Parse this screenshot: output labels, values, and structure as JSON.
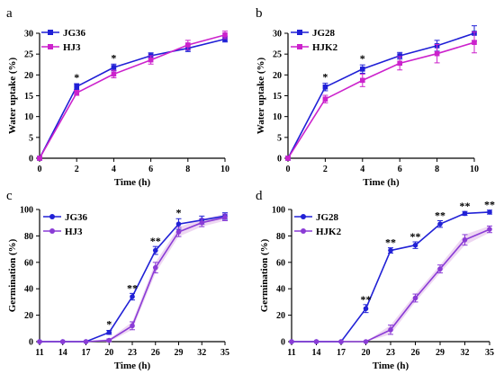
{
  "chart_data": [
    {
      "panel": "a",
      "type": "line",
      "xlabel": "Time (h)",
      "ylabel": "Water uptake (%)",
      "x": [
        0,
        2,
        4,
        6,
        8,
        10
      ],
      "xticks": [
        "0",
        "2",
        "4",
        "6",
        "8",
        "10"
      ],
      "yticks": [
        "0",
        "5",
        "10",
        "15",
        "20",
        "25",
        "30"
      ],
      "xlim": [
        0,
        10
      ],
      "ylim": [
        0,
        30
      ],
      "legend": "top-left",
      "series": [
        {
          "name": "JG36",
          "color": "#1f1fd6",
          "marker": "square",
          "shade": false,
          "values": [
            0,
            17.2,
            21.8,
            24.6,
            26.4,
            28.6
          ],
          "errors": [
            0,
            0.7,
            0.8,
            0.7,
            0.8,
            0.7
          ]
        },
        {
          "name": "HJ3",
          "color": "#cc22cc",
          "marker": "square",
          "shade": false,
          "values": [
            0,
            15.7,
            20.2,
            23.6,
            27.2,
            29.6
          ],
          "errors": [
            0,
            0.6,
            0.9,
            1.0,
            1.1,
            0.9
          ]
        }
      ],
      "significance": [
        {
          "x": 2,
          "label": "*"
        },
        {
          "x": 4,
          "label": "*"
        }
      ]
    },
    {
      "panel": "b",
      "type": "line",
      "xlabel": "Time (h)",
      "ylabel": "Water uptake (%)",
      "x": [
        0,
        2,
        4,
        6,
        8,
        10
      ],
      "xticks": [
        "0",
        "2",
        "4",
        "6",
        "8",
        "10"
      ],
      "yticks": [
        "0",
        "5",
        "10",
        "15",
        "20",
        "25",
        "30"
      ],
      "xlim": [
        0,
        10
      ],
      "ylim": [
        0,
        30
      ],
      "legend": "top-left",
      "series": [
        {
          "name": "JG28",
          "color": "#1f1fd6",
          "marker": "square",
          "shade": false,
          "values": [
            0,
            17.1,
            21.4,
            24.6,
            27.0,
            30.0
          ],
          "errors": [
            0,
            0.9,
            1.0,
            0.8,
            1.3,
            1.8
          ]
        },
        {
          "name": "HJK2",
          "color": "#cc22cc",
          "marker": "square",
          "shade": false,
          "values": [
            0,
            14.2,
            18.7,
            22.8,
            25.1,
            27.8
          ],
          "errors": [
            0,
            0.9,
            1.5,
            1.6,
            2.2,
            2.5
          ]
        }
      ],
      "significance": [
        {
          "x": 2,
          "label": "*"
        },
        {
          "x": 4,
          "label": "*"
        }
      ]
    },
    {
      "panel": "c",
      "type": "line",
      "xlabel": "Time (h)",
      "ylabel": "Germination  (%)",
      "x": [
        11,
        14,
        17,
        20,
        23,
        26,
        29,
        32,
        35
      ],
      "xticks": [
        "11",
        "14",
        "17",
        "20",
        "23",
        "26",
        "29",
        "32",
        "35"
      ],
      "yticks": [
        "0",
        "20",
        "40",
        "60",
        "80",
        "100"
      ],
      "xlim": [
        11,
        35
      ],
      "ylim": [
        0,
        100
      ],
      "legend": "top-left",
      "series": [
        {
          "name": "JG36",
          "color": "#2121d6",
          "marker": "circle",
          "shade": false,
          "values": [
            0,
            0,
            0,
            7,
            34,
            69,
            89,
            92,
            95
          ],
          "errors": [
            0,
            0,
            0,
            1.5,
            2.5,
            3,
            4,
            3,
            2.5
          ]
        },
        {
          "name": "HJ3",
          "color": "#8a3bd6",
          "marker": "circle",
          "shade": true,
          "values": [
            0,
            0,
            0,
            1,
            12,
            56,
            83,
            90,
            94
          ],
          "errors": [
            0,
            0,
            0,
            1,
            3,
            4,
            3.5,
            3,
            2.5
          ]
        }
      ],
      "significance": [
        {
          "x": 20,
          "label": "*"
        },
        {
          "x": 23,
          "label": "**"
        },
        {
          "x": 26,
          "label": "**"
        },
        {
          "x": 29,
          "label": "*"
        }
      ]
    },
    {
      "panel": "d",
      "type": "line",
      "xlabel": "Time (h)",
      "ylabel": "Germination  (%)",
      "x": [
        11,
        14,
        17,
        20,
        23,
        26,
        29,
        32,
        35
      ],
      "xticks": [
        "11",
        "14",
        "17",
        "20",
        "23",
        "26",
        "29",
        "32",
        "35"
      ],
      "yticks": [
        "0",
        "20",
        "40",
        "60",
        "80",
        "100"
      ],
      "xlim": [
        11,
        35
      ],
      "ylim": [
        0,
        100
      ],
      "legend": "top-left",
      "series": [
        {
          "name": "JG28",
          "color": "#2121d6",
          "marker": "circle",
          "shade": false,
          "values": [
            0,
            0,
            0,
            25,
            69,
            73,
            89,
            97,
            98
          ],
          "errors": [
            0,
            0,
            0,
            3,
            2,
            2.5,
            2.5,
            1.5,
            1.5
          ]
        },
        {
          "name": "HJK2",
          "color": "#8a3bd6",
          "marker": "circle",
          "shade": true,
          "values": [
            0,
            0,
            0,
            0,
            9,
            33,
            55,
            77,
            85
          ],
          "errors": [
            0,
            0,
            0,
            0,
            3.5,
            3,
            3,
            4,
            2.5
          ]
        }
      ],
      "significance": [
        {
          "x": 20,
          "label": "**"
        },
        {
          "x": 23,
          "label": "**"
        },
        {
          "x": 26,
          "label": "**"
        },
        {
          "x": 29,
          "label": "**"
        },
        {
          "x": 32,
          "label": "**"
        },
        {
          "x": 35,
          "label": "**"
        }
      ]
    }
  ]
}
